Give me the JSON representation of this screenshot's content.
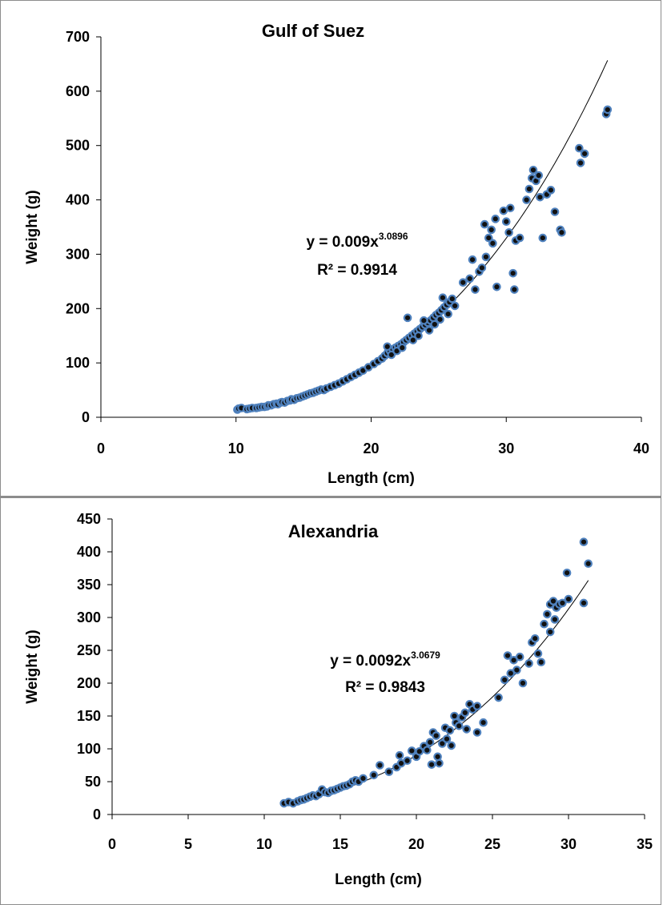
{
  "chart_data": [
    {
      "type": "scatter",
      "title": "Gulf of Suez",
      "xlabel": "Length (cm)",
      "ylabel": "Weight (g)",
      "xlim": [
        0,
        40
      ],
      "ylim": [
        0,
        700
      ],
      "x_ticks": [
        "0",
        "10",
        "20",
        "30",
        "40"
      ],
      "y_ticks": [
        "0",
        "100",
        "200",
        "300",
        "400",
        "500",
        "600",
        "700"
      ],
      "grid": false,
      "equation": {
        "prefix": "y = 0.009x",
        "exponent": "3.0896",
        "r2": "R² = 0.9914"
      },
      "trendline": {
        "a": 0.009,
        "b": 3.0896,
        "x_range": [
          10,
          37.5
        ]
      },
      "points": [
        [
          10.1,
          14
        ],
        [
          10.2,
          16
        ],
        [
          10.4,
          17
        ],
        [
          10.8,
          15
        ],
        [
          11.0,
          16
        ],
        [
          11.2,
          17
        ],
        [
          11.5,
          17
        ],
        [
          11.7,
          18
        ],
        [
          11.9,
          19
        ],
        [
          12.1,
          19
        ],
        [
          12.3,
          20
        ],
        [
          12.4,
          22
        ],
        [
          12.6,
          22
        ],
        [
          12.8,
          24
        ],
        [
          13.0,
          25
        ],
        [
          13.1,
          24
        ],
        [
          13.3,
          27
        ],
        [
          13.4,
          28
        ],
        [
          13.6,
          27
        ],
        [
          13.8,
          30
        ],
        [
          14.0,
          31
        ],
        [
          14.1,
          33
        ],
        [
          14.3,
          32
        ],
        [
          14.5,
          35
        ],
        [
          14.7,
          36
        ],
        [
          14.9,
          38
        ],
        [
          15.1,
          40
        ],
        [
          15.3,
          42
        ],
        [
          15.5,
          44
        ],
        [
          15.7,
          45
        ],
        [
          15.9,
          47
        ],
        [
          16.1,
          49
        ],
        [
          16.3,
          51
        ],
        [
          16.5,
          50
        ],
        [
          16.7,
          53
        ],
        [
          17.0,
          56
        ],
        [
          17.3,
          59
        ],
        [
          17.6,
          62
        ],
        [
          17.9,
          66
        ],
        [
          18.2,
          70
        ],
        [
          18.5,
          74
        ],
        [
          18.8,
          78
        ],
        [
          19.1,
          82
        ],
        [
          19.4,
          86
        ],
        [
          19.8,
          92
        ],
        [
          20.2,
          98
        ],
        [
          20.5,
          103
        ],
        [
          20.8,
          108
        ],
        [
          21.0,
          113
        ],
        [
          21.2,
          118
        ],
        [
          21.4,
          122
        ],
        [
          21.6,
          125
        ],
        [
          21.8,
          128
        ],
        [
          22.0,
          131
        ],
        [
          22.2,
          134
        ],
        [
          22.4,
          138
        ],
        [
          22.6,
          142
        ],
        [
          22.8,
          146
        ],
        [
          23.0,
          150
        ],
        [
          23.2,
          154
        ],
        [
          23.4,
          158
        ],
        [
          23.6,
          162
        ],
        [
          23.8,
          166
        ],
        [
          24.0,
          170
        ],
        [
          24.2,
          174
        ],
        [
          24.4,
          178
        ],
        [
          24.6,
          183
        ],
        [
          24.8,
          188
        ],
        [
          25.0,
          192
        ],
        [
          25.2,
          197
        ],
        [
          25.4,
          202
        ],
        [
          25.6,
          207
        ],
        [
          25.8,
          212
        ],
        [
          26.0,
          218
        ],
        [
          21.2,
          130
        ],
        [
          21.5,
          115
        ],
        [
          21.9,
          122
        ],
        [
          22.3,
          128
        ],
        [
          22.7,
          183
        ],
        [
          23.1,
          142
        ],
        [
          23.5,
          150
        ],
        [
          23.9,
          178
        ],
        [
          24.3,
          160
        ],
        [
          24.7,
          171
        ],
        [
          25.1,
          180
        ],
        [
          25.3,
          220
        ],
        [
          25.7,
          190
        ],
        [
          26.2,
          205
        ],
        [
          26.8,
          248
        ],
        [
          27.3,
          255
        ],
        [
          27.5,
          290
        ],
        [
          27.7,
          235
        ],
        [
          28.0,
          268
        ],
        [
          28.2,
          275
        ],
        [
          28.4,
          355
        ],
        [
          28.5,
          295
        ],
        [
          28.7,
          330
        ],
        [
          28.9,
          345
        ],
        [
          29.0,
          320
        ],
        [
          29.2,
          365
        ],
        [
          29.3,
          240
        ],
        [
          29.8,
          380
        ],
        [
          30.0,
          360
        ],
        [
          30.2,
          340
        ],
        [
          30.3,
          385
        ],
        [
          30.5,
          265
        ],
        [
          30.6,
          235
        ],
        [
          30.7,
          325
        ],
        [
          31.0,
          330
        ],
        [
          31.5,
          400
        ],
        [
          31.7,
          420
        ],
        [
          31.9,
          440
        ],
        [
          32.0,
          455
        ],
        [
          32.2,
          435
        ],
        [
          32.4,
          445
        ],
        [
          32.5,
          405
        ],
        [
          32.7,
          330
        ],
        [
          33.0,
          410
        ],
        [
          33.3,
          418
        ],
        [
          33.6,
          378
        ],
        [
          34.0,
          345
        ],
        [
          34.1,
          340
        ],
        [
          35.4,
          495
        ],
        [
          35.5,
          468
        ],
        [
          35.8,
          485
        ],
        [
          37.4,
          558
        ],
        [
          37.5,
          566
        ]
      ]
    },
    {
      "type": "scatter",
      "title": "Alexandria",
      "xlabel": "Length (cm)",
      "ylabel": "Weight (g)",
      "xlim": [
        0,
        35
      ],
      "ylim": [
        0,
        450
      ],
      "x_ticks": [
        "0",
        "5",
        "10",
        "15",
        "20",
        "25",
        "30",
        "35"
      ],
      "y_ticks": [
        "0",
        "50",
        "100",
        "150",
        "200",
        "250",
        "300",
        "350",
        "400",
        "450"
      ],
      "grid": false,
      "equation": {
        "prefix": "y = 0.0092x",
        "exponent": "3.0679",
        "r2": "R² = 0.9843"
      },
      "trendline": {
        "a": 0.0092,
        "b": 3.0679,
        "x_range": [
          11.2,
          31.3
        ]
      },
      "points": [
        [
          11.3,
          17
        ],
        [
          11.6,
          19
        ],
        [
          11.9,
          17
        ],
        [
          12.2,
          20
        ],
        [
          12.4,
          22
        ],
        [
          12.6,
          23
        ],
        [
          12.8,
          25
        ],
        [
          13.0,
          27
        ],
        [
          13.2,
          29
        ],
        [
          13.4,
          28
        ],
        [
          13.6,
          31
        ],
        [
          13.8,
          38
        ],
        [
          14.0,
          34
        ],
        [
          14.2,
          33
        ],
        [
          14.4,
          36
        ],
        [
          14.6,
          37
        ],
        [
          14.8,
          39
        ],
        [
          15.0,
          41
        ],
        [
          15.2,
          43
        ],
        [
          15.4,
          44
        ],
        [
          15.6,
          46
        ],
        [
          15.8,
          50
        ],
        [
          16.0,
          52
        ],
        [
          16.2,
          50
        ],
        [
          16.5,
          55
        ],
        [
          17.2,
          60
        ],
        [
          17.6,
          75
        ],
        [
          18.2,
          65
        ],
        [
          18.7,
          72
        ],
        [
          18.9,
          90
        ],
        [
          19.0,
          78
        ],
        [
          19.4,
          82
        ],
        [
          19.7,
          97
        ],
        [
          20.0,
          88
        ],
        [
          20.2,
          96
        ],
        [
          20.5,
          104
        ],
        [
          20.7,
          98
        ],
        [
          20.9,
          110
        ],
        [
          21.0,
          76
        ],
        [
          21.1,
          125
        ],
        [
          21.3,
          120
        ],
        [
          21.4,
          88
        ],
        [
          21.5,
          78
        ],
        [
          21.7,
          108
        ],
        [
          21.9,
          132
        ],
        [
          22.0,
          115
        ],
        [
          22.2,
          128
        ],
        [
          22.3,
          105
        ],
        [
          22.5,
          150
        ],
        [
          22.6,
          140
        ],
        [
          22.8,
          135
        ],
        [
          23.0,
          148
        ],
        [
          23.2,
          155
        ],
        [
          23.3,
          130
        ],
        [
          23.5,
          168
        ],
        [
          23.7,
          160
        ],
        [
          24.0,
          125
        ],
        [
          24.0,
          165
        ],
        [
          24.4,
          140
        ],
        [
          25.4,
          178
        ],
        [
          25.8,
          205
        ],
        [
          26.0,
          242
        ],
        [
          26.2,
          215
        ],
        [
          26.4,
          235
        ],
        [
          26.6,
          220
        ],
        [
          26.8,
          240
        ],
        [
          27.0,
          200
        ],
        [
          27.4,
          230
        ],
        [
          27.6,
          262
        ],
        [
          27.8,
          268
        ],
        [
          28.0,
          245
        ],
        [
          28.2,
          232
        ],
        [
          28.4,
          290
        ],
        [
          28.6,
          305
        ],
        [
          28.8,
          320
        ],
        [
          29.0,
          325
        ],
        [
          29.2,
          315
        ],
        [
          29.4,
          320
        ],
        [
          29.6,
          322
        ],
        [
          29.9,
          368
        ],
        [
          30.0,
          328
        ],
        [
          31.0,
          322
        ],
        [
          31.0,
          415
        ],
        [
          31.3,
          382
        ],
        [
          28.8,
          278
        ],
        [
          29.1,
          297
        ]
      ]
    }
  ]
}
